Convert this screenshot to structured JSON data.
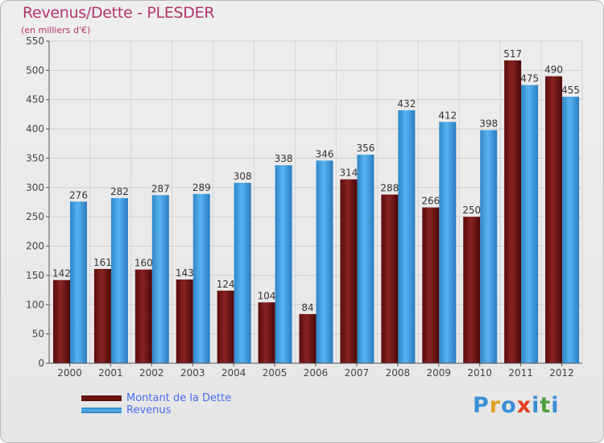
{
  "title": "Revenus/Dette - PLESDER",
  "subtitle": "(en milliers d'€)",
  "legend": {
    "dette_label": "Montant de la Dette",
    "revenus_label": "Revenus"
  },
  "logo": {
    "letters": [
      "P",
      "r",
      "o",
      "x",
      "i",
      "t",
      "i"
    ],
    "colors": [
      "#3a8fd6",
      "#e0a020",
      "#3a8fd6",
      "#e04020",
      "#3a8fd6",
      "#50a040",
      "#3a8fd6"
    ]
  },
  "colors": {
    "dette": "#7a1616",
    "revenus": "#3f9de0"
  },
  "chart_data": {
    "type": "bar",
    "title": "Revenus/Dette - PLESDER",
    "ylabel": "(en milliers d'€)",
    "xlabel": "",
    "ylim": [
      0,
      550
    ],
    "yticks": [
      0,
      50,
      100,
      150,
      200,
      250,
      300,
      350,
      400,
      450,
      500,
      550
    ],
    "grid": true,
    "legend_position": "bottom-left",
    "categories": [
      "2000",
      "2001",
      "2002",
      "2003",
      "2004",
      "2005",
      "2006",
      "2007",
      "2008",
      "2009",
      "2010",
      "2011",
      "2012"
    ],
    "series": [
      {
        "name": "Montant de la Dette",
        "values": [
          142,
          161,
          160,
          143,
          124,
          104,
          84,
          314,
          288,
          266,
          250,
          517,
          490
        ]
      },
      {
        "name": "Revenus",
        "values": [
          276,
          282,
          287,
          289,
          308,
          338,
          346,
          356,
          432,
          412,
          398,
          475,
          455
        ]
      }
    ]
  }
}
